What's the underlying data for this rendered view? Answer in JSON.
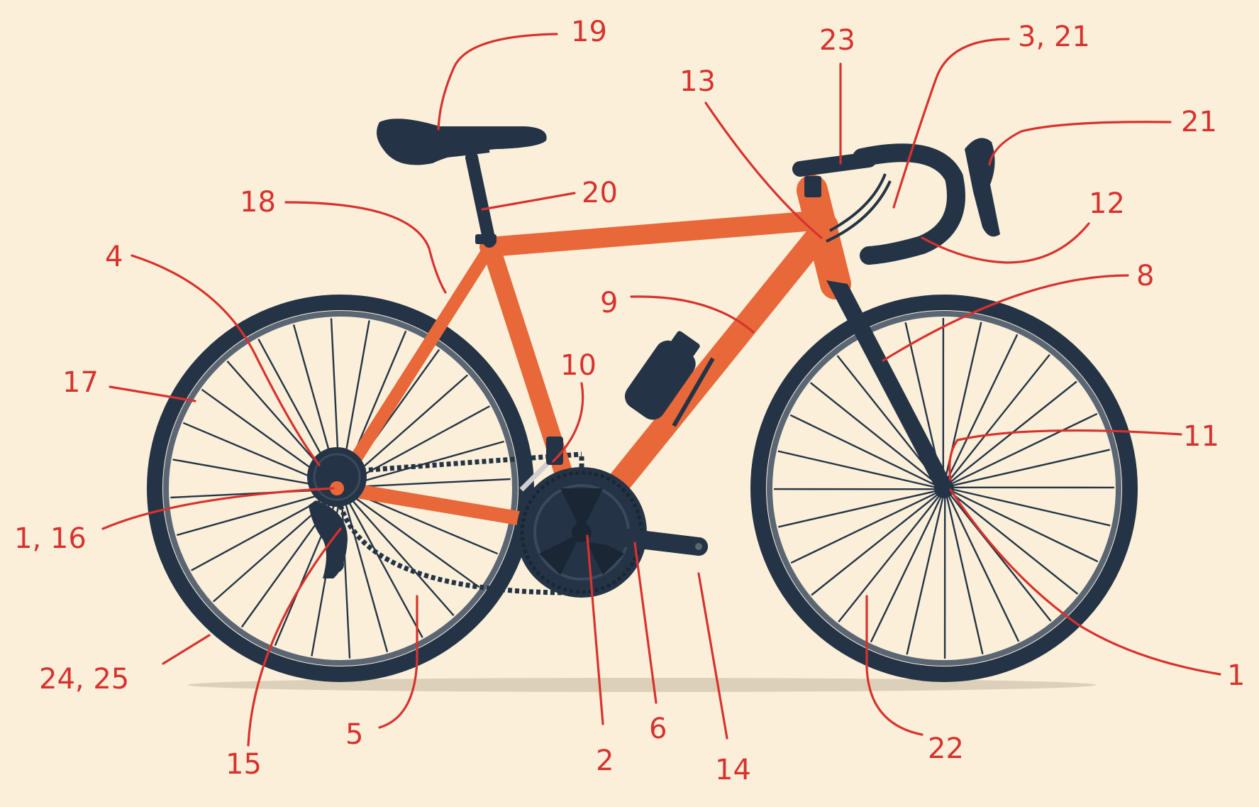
{
  "diagram": {
    "colors": {
      "background": "#fbefd9",
      "frame": "#e8683a",
      "components": "#243446",
      "labels": "#d8322e"
    },
    "callouts": [
      {
        "id": "c19",
        "text": "19"
      },
      {
        "id": "c23",
        "text": "23"
      },
      {
        "id": "c3_21",
        "text": "3, 21"
      },
      {
        "id": "c13",
        "text": "13"
      },
      {
        "id": "c21",
        "text": "21"
      },
      {
        "id": "c18",
        "text": "18"
      },
      {
        "id": "c20",
        "text": "20"
      },
      {
        "id": "c12",
        "text": "12"
      },
      {
        "id": "c4",
        "text": "4"
      },
      {
        "id": "c8",
        "text": "8"
      },
      {
        "id": "c9",
        "text": "9"
      },
      {
        "id": "c10",
        "text": "10"
      },
      {
        "id": "c17",
        "text": "17"
      },
      {
        "id": "c11",
        "text": "11"
      },
      {
        "id": "c1_16",
        "text": "1, 16"
      },
      {
        "id": "c1",
        "text": "1"
      },
      {
        "id": "c24_25",
        "text": "24, 25"
      },
      {
        "id": "c5",
        "text": "5"
      },
      {
        "id": "c6",
        "text": "6"
      },
      {
        "id": "c15",
        "text": "15"
      },
      {
        "id": "c2",
        "text": "2"
      },
      {
        "id": "c14",
        "text": "14"
      },
      {
        "id": "c22",
        "text": "22"
      }
    ]
  }
}
